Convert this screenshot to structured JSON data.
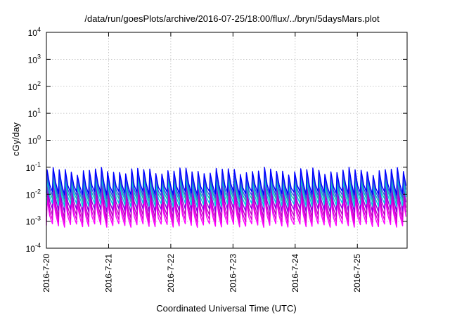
{
  "chart_data": {
    "type": "line",
    "title": "/data/run/goesPlots/archive/2016-07-25/18:00/flux/../bryn/5daysMars.plot",
    "xlabel": "Coordinated Universal Time (UTC)",
    "ylabel": "cGy/day",
    "yscale": "log",
    "ylim": [
      0.0001,
      10000
    ],
    "xlim_days": [
      0,
      5.8
    ],
    "grid": true,
    "legend": "none",
    "y_ticks": [
      {
        "base": "10",
        "exp": "-4",
        "value": 0.0001
      },
      {
        "base": "10",
        "exp": "-3",
        "value": 0.001
      },
      {
        "base": "10",
        "exp": "-2",
        "value": 0.01
      },
      {
        "base": "10",
        "exp": "-1",
        "value": 0.1
      },
      {
        "base": "10",
        "exp": "0",
        "value": 1
      },
      {
        "base": "10",
        "exp": "1",
        "value": 10
      },
      {
        "base": "10",
        "exp": "2",
        "value": 100
      },
      {
        "base": "10",
        "exp": "3",
        "value": 1000
      },
      {
        "base": "10",
        "exp": "4",
        "value": 10000
      }
    ],
    "x_ticks": [
      {
        "label": "2016-7-20",
        "day": 0
      },
      {
        "label": "2016-7-21",
        "day": 1
      },
      {
        "label": "2016-7-22",
        "day": 2
      },
      {
        "label": "2016-7-23",
        "day": 3
      },
      {
        "label": "2016-7-24",
        "day": 4
      },
      {
        "label": "2016-7-25",
        "day": 5
      }
    ],
    "cycles_per_day": 10.3,
    "series_style": "sawtooth periodic dose rate, sharp rise then decay each cycle",
    "series": [
      {
        "color": "#ff00ff",
        "peak_cGy_day": 0.006,
        "trough_cGy_day": 0.0007
      },
      {
        "color": "#e000d8",
        "peak_cGy_day": 0.009,
        "trough_cGy_day": 0.001
      },
      {
        "color": "#c000c8",
        "peak_cGy_day": 0.013,
        "trough_cGy_day": 0.0015
      },
      {
        "color": "#9000e0",
        "peak_cGy_day": 0.02,
        "trough_cGy_day": 0.0025
      },
      {
        "color": "#00d0e0",
        "peak_cGy_day": 0.03,
        "trough_cGy_day": 0.004
      },
      {
        "color": "#20b0b0",
        "peak_cGy_day": 0.04,
        "trough_cGy_day": 0.006
      },
      {
        "color": "#3050e8",
        "peak_cGy_day": 0.055,
        "trough_cGy_day": 0.008
      },
      {
        "color": "#0000ff",
        "peak_cGy_day": 0.075,
        "trough_cGy_day": 0.011
      }
    ]
  }
}
